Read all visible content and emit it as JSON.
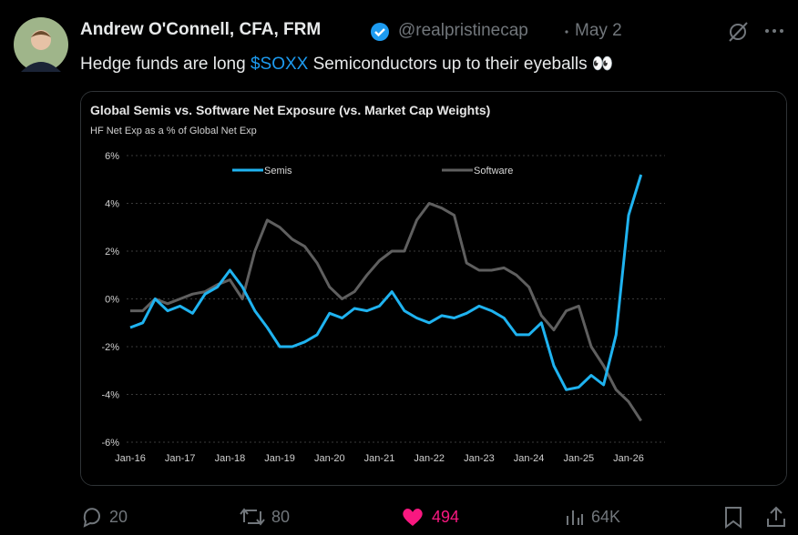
{
  "tweet": {
    "author": "Andrew O'Connell, CFA, FRM",
    "handle": "@realpristinecap",
    "date": "May 2",
    "text": [
      "Hedge funds are long ",
      "$SOXX",
      " Semiconductors up to their eyeballs 👀"
    ],
    "stats": {
      "replies": "20",
      "reposts": "80",
      "likes": "494",
      "views": "64K"
    }
  },
  "chart_data": {
    "type": "line",
    "title": "Global Semis vs. Software Net Exposure (vs. Market Cap Weights)",
    "subtitle": "HF Net Exp as a % of Global Net Exp",
    "x": [
      "Jan-16",
      "Apr-16",
      "Jul-16",
      "Oct-16",
      "Jan-17",
      "Apr-17",
      "Jul-17",
      "Oct-17",
      "Jan-18",
      "Apr-18",
      "Jul-18",
      "Oct-18",
      "Jan-19",
      "Apr-19",
      "Jul-19",
      "Oct-19",
      "Jan-20",
      "Apr-20",
      "Jul-20",
      "Oct-20",
      "Jan-21",
      "Apr-21",
      "Jul-21",
      "Oct-21",
      "Jan-22",
      "Apr-22",
      "Jul-22",
      "Oct-22",
      "Jan-23",
      "Apr-23",
      "Jul-23",
      "Oct-23",
      "Jan-24",
      "Apr-24",
      "Jul-24",
      "Oct-24",
      "Jan-25",
      "Apr-25",
      "Jul-25",
      "Oct-25",
      "Jan-26",
      "Apr-26"
    ],
    "series": [
      {
        "name": "Semis",
        "color": "#1fb3f0",
        "values": [
          -1.2,
          -1.0,
          0.0,
          -0.5,
          -0.3,
          -0.6,
          0.2,
          0.5,
          1.2,
          0.5,
          -0.5,
          -1.2,
          -2.0,
          -2.0,
          -1.8,
          -1.5,
          -0.6,
          -0.8,
          -0.4,
          -0.5,
          -0.3,
          0.3,
          -0.5,
          -0.8,
          -1.0,
          -0.7,
          -0.8,
          -0.6,
          -0.3,
          -0.5,
          -0.8,
          -1.5,
          -1.5,
          -1.0,
          -2.8,
          -3.8,
          -3.7,
          -3.2,
          -3.6,
          -1.5,
          3.5,
          5.2
        ]
      },
      {
        "name": "Software",
        "color": "#5f5f5f",
        "values": [
          -0.5,
          -0.5,
          0.0,
          -0.2,
          0.0,
          0.2,
          0.3,
          0.6,
          0.8,
          0.0,
          2.0,
          3.3,
          3.0,
          2.5,
          2.2,
          1.5,
          0.5,
          0.0,
          0.3,
          1.0,
          1.6,
          2.0,
          2.0,
          3.3,
          4.0,
          3.8,
          3.5,
          1.5,
          1.2,
          1.2,
          1.3,
          1.0,
          0.5,
          -0.7,
          -1.3,
          -0.5,
          -0.3,
          -2.0,
          -2.8,
          -3.8,
          -4.3,
          -5.1
        ]
      }
    ],
    "ylim": [
      -6,
      6
    ],
    "yticks": [
      {
        "value": 6,
        "label": "6%"
      },
      {
        "value": 4,
        "label": "4%"
      },
      {
        "value": 2,
        "label": "2%"
      },
      {
        "value": 0,
        "label": "0%"
      },
      {
        "value": -2,
        "label": "-2%"
      },
      {
        "value": -4,
        "label": "-4%"
      },
      {
        "value": -6,
        "label": "-6%"
      }
    ],
    "grid": true
  }
}
